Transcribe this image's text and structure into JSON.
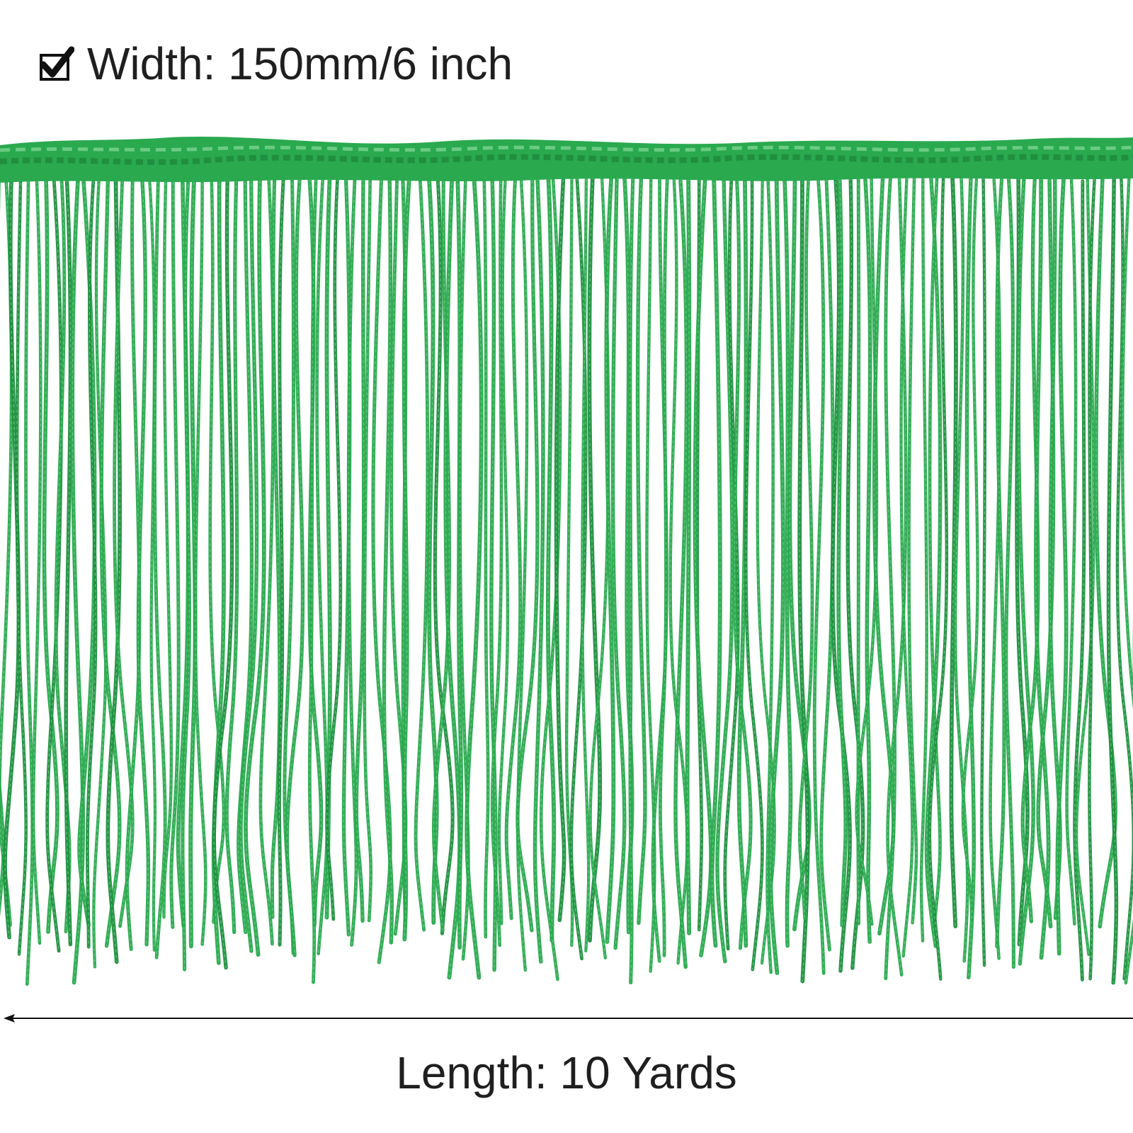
{
  "labels": {
    "width": "Width: 150mm/6 inch",
    "length": "Length: 10 Yards"
  },
  "icons": {
    "check": "checked-box-icon",
    "arrow": "left-arrow-icon"
  },
  "colors": {
    "fringe": "#2aa94f",
    "fringe_dark": "#1f8f3f",
    "text": "#1f1f1f"
  }
}
